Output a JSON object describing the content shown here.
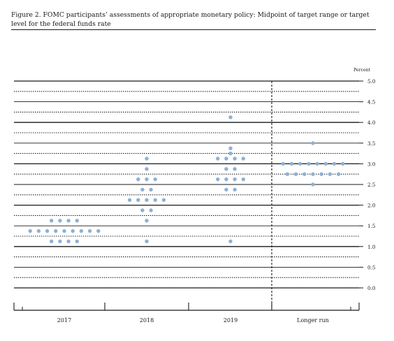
{
  "figure": {
    "title": "Figure 2. FOMC participants’ assessments of appropriate monetary policy: Midpoint of target range or target level for the federal funds rate"
  },
  "chart_data": {
    "type": "scatter",
    "title": "Figure 2. FOMC participants’ assessments of appropriate monetary policy: Midpoint of target range or target level for the federal funds rate",
    "ylabel": "Percent",
    "ylim": [
      0,
      5
    ],
    "grid": true,
    "categories": [
      "2017",
      "2018",
      "2019",
      "Longer run"
    ],
    "y_ticks": [
      {
        "value": 5.0,
        "label": "5.0"
      },
      {
        "value": 4.5,
        "label": "4.5"
      },
      {
        "value": 4.0,
        "label": "4.0"
      },
      {
        "value": 3.5,
        "label": "3.5"
      },
      {
        "value": 3.0,
        "label": "3.0"
      },
      {
        "value": 2.5,
        "label": "2.5"
      },
      {
        "value": 2.0,
        "label": "2.0"
      },
      {
        "value": 1.5,
        "label": "1.5"
      },
      {
        "value": 1.0,
        "label": "1.0"
      },
      {
        "value": 0.5,
        "label": "0.5"
      },
      {
        "value": 0.0,
        "label": "0.0"
      }
    ],
    "dot_color": "#8fb0d3",
    "series": [
      {
        "category": "2017",
        "points": [
          {
            "y": 1.625,
            "count": 4
          },
          {
            "y": 1.375,
            "count": 9
          },
          {
            "y": 1.125,
            "count": 4
          }
        ]
      },
      {
        "category": "2018",
        "points": [
          {
            "y": 3.125,
            "count": 1
          },
          {
            "y": 2.875,
            "count": 1
          },
          {
            "y": 2.625,
            "count": 3
          },
          {
            "y": 2.375,
            "count": 2
          },
          {
            "y": 2.125,
            "count": 5
          },
          {
            "y": 1.875,
            "count": 2
          },
          {
            "y": 1.625,
            "count": 1
          },
          {
            "y": 1.125,
            "count": 1
          }
        ]
      },
      {
        "category": "2019",
        "points": [
          {
            "y": 4.125,
            "count": 1
          },
          {
            "y": 3.375,
            "count": 1
          },
          {
            "y": 3.25,
            "count": 1
          },
          {
            "y": 3.125,
            "count": 4
          },
          {
            "y": 2.875,
            "count": 2
          },
          {
            "y": 2.625,
            "count": 4
          },
          {
            "y": 2.375,
            "count": 2
          },
          {
            "y": 1.125,
            "count": 1
          }
        ]
      },
      {
        "category": "Longer run",
        "points": [
          {
            "y": 3.5,
            "count": 1
          },
          {
            "y": 3.0,
            "count": 8
          },
          {
            "y": 2.75,
            "count": 7
          },
          {
            "y": 2.5,
            "count": 1
          }
        ]
      }
    ]
  }
}
